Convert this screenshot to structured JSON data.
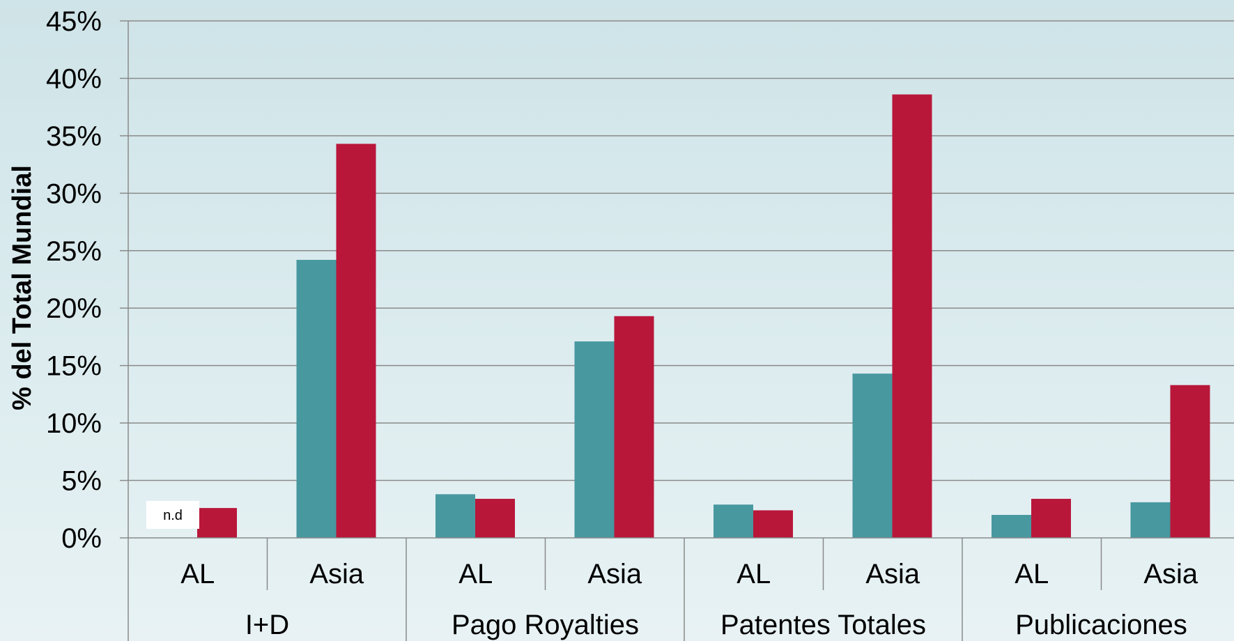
{
  "chart_data": {
    "type": "bar",
    "title": "",
    "xlabel": "",
    "ylabel": "% del Total Mundial",
    "ylim": [
      0,
      45
    ],
    "y_ticks": [
      {
        "value": 0,
        "label": "0%"
      },
      {
        "value": 5,
        "label": "5%"
      },
      {
        "value": 10,
        "label": "10%"
      },
      {
        "value": 15,
        "label": "15%"
      },
      {
        "value": 20,
        "label": "20%"
      },
      {
        "value": 25,
        "label": "25%"
      },
      {
        "value": 30,
        "label": "30%"
      },
      {
        "value": 35,
        "label": "35%"
      },
      {
        "value": 40,
        "label": "40%"
      },
      {
        "value": 45,
        "label": "45%"
      }
    ],
    "grid": true,
    "legend": "none",
    "groups": [
      {
        "label": "I+D",
        "subcategories": [
          "AL",
          "Asia"
        ]
      },
      {
        "label": "Pago Royalties",
        "subcategories": [
          "AL",
          "Asia"
        ]
      },
      {
        "label": "Patentes Totales",
        "subcategories": [
          "AL",
          "Asia"
        ]
      },
      {
        "label": "Publicaciones",
        "subcategories": [
          "AL",
          "Asia"
        ]
      }
    ],
    "series": [
      {
        "color": "#4898a0",
        "values": [
          null,
          24.2,
          3.8,
          17.1,
          2.9,
          14.3,
          2.0,
          3.1
        ]
      },
      {
        "color": "#b8173a",
        "values": [
          2.6,
          34.3,
          3.4,
          19.3,
          2.4,
          38.6,
          3.4,
          13.3
        ]
      }
    ],
    "annotations": [
      {
        "category_index": 0,
        "series_index": 0,
        "text": "n.d"
      }
    ]
  }
}
